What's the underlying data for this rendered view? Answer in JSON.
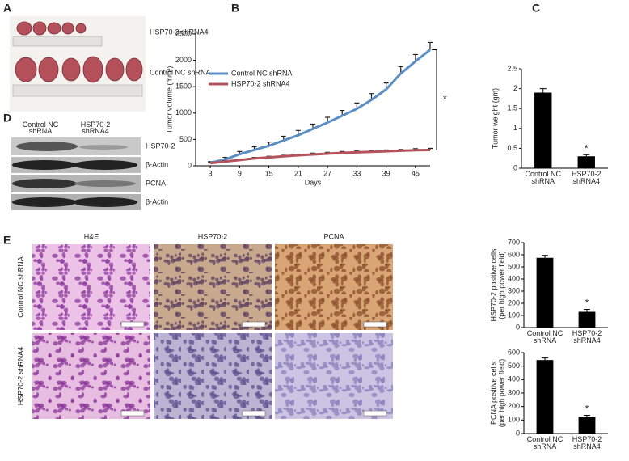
{
  "panel_labels": [
    "A",
    "B",
    "C",
    "D",
    "E"
  ],
  "panel_a": {
    "labels": [
      "HSP70-2 shRNA4",
      "Control NC shRNA"
    ]
  },
  "panel_d": {
    "columns": [
      "Control  NC shRNA",
      "HSP70-2 shRNA4"
    ],
    "rows": [
      "HSP70-2",
      "β-Actin",
      "PCNA",
      "β-Actin"
    ]
  },
  "panel_e": {
    "columns": [
      "H&E",
      "HSP70-2",
      "PCNA"
    ],
    "rows": [
      "Control NC shRNA",
      "HSP70-2 shRNA4"
    ]
  },
  "chart_data": [
    {
      "type": "line",
      "x_label": "Days",
      "y_label": "Tumor volume (mm³)",
      "x": [
        3,
        6,
        9,
        12,
        15,
        18,
        21,
        24,
        27,
        30,
        33,
        36,
        39,
        42,
        45,
        48
      ],
      "series": [
        {
          "name": "Control NC shRNA",
          "color": "#5b8fc4",
          "values": [
            60,
            120,
            220,
            300,
            380,
            480,
            580,
            700,
            820,
            950,
            1080,
            1250,
            1450,
            1750,
            1980,
            2200
          ],
          "errors": [
            20,
            40,
            50,
            60,
            70,
            80,
            90,
            90,
            100,
            100,
            110,
            120,
            120,
            130,
            130,
            140
          ]
        },
        {
          "name": "HSP70-2 shRNA4",
          "color": "#b5525c",
          "values": [
            50,
            80,
            110,
            140,
            160,
            180,
            200,
            215,
            230,
            245,
            255,
            265,
            275,
            285,
            295,
            300
          ],
          "errors": [
            10,
            15,
            15,
            20,
            20,
            20,
            20,
            25,
            25,
            25,
            25,
            25,
            25,
            25,
            30,
            30
          ]
        }
      ],
      "xlim": [
        0,
        48
      ],
      "xticks": [
        3,
        9,
        15,
        21,
        27,
        33,
        39,
        45
      ],
      "ylim": [
        0,
        2500
      ],
      "yticks": [
        0,
        500,
        1000,
        1500,
        2000,
        2500
      ],
      "annotation": "*"
    },
    {
      "type": "bar",
      "y_label": [
        "Tumor weight (gm)"
      ],
      "categories": [
        "Control  NC shRNA",
        "HSP70-2 shRNA4"
      ],
      "values": [
        1.9,
        0.3
      ],
      "errors": [
        0.1,
        0.04
      ],
      "color": "#000000",
      "ylim": [
        0,
        2.5
      ],
      "yticks": [
        0,
        0.5,
        1,
        1.5,
        2,
        2.5
      ],
      "annotation": "*"
    },
    {
      "type": "bar",
      "y_label": [
        "HSP70-2 positive cells",
        "(per high power field)"
      ],
      "categories": [
        "Control  NC shRNA",
        "HSP70-2 shRNA4"
      ],
      "values": [
        575,
        130
      ],
      "errors": [
        20,
        20
      ],
      "color": "#000000",
      "ylim": [
        0,
        700
      ],
      "yticks": [
        0,
        100,
        200,
        300,
        400,
        500,
        600,
        700
      ],
      "annotation": "*"
    },
    {
      "type": "bar",
      "y_label": [
        "PCNA  positive cells",
        "(per high power field)"
      ],
      "categories": [
        "Control  NC shRNA",
        "HSP70-2 shRNA4"
      ],
      "values": [
        545,
        125
      ],
      "errors": [
        15,
        10
      ],
      "color": "#000000",
      "ylim": [
        0,
        600
      ],
      "yticks": [
        0,
        100,
        200,
        300,
        400,
        500,
        600
      ],
      "annotation": "*"
    }
  ]
}
